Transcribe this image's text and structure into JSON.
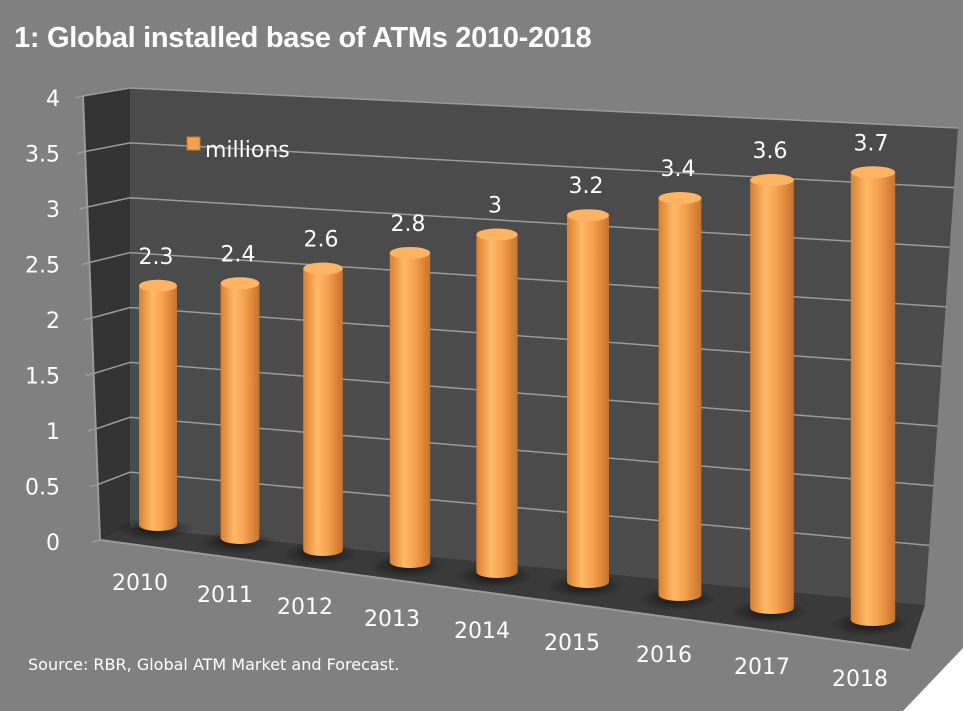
{
  "chart_data": {
    "type": "bar",
    "title": "1: Global installed base of ATMs 2010-2018",
    "categories": [
      "2010",
      "2011",
      "2012",
      "2013",
      "2014",
      "2015",
      "2016",
      "2017",
      "2018"
    ],
    "series": [
      {
        "name": "millions",
        "values": [
          2.3,
          2.4,
          2.6,
          2.8,
          3,
          3.2,
          3.4,
          3.6,
          3.7
        ]
      }
    ],
    "data_labels": [
      "2.3",
      "2.4",
      "2.6",
      "2.8",
      "3",
      "3.2",
      "3.4",
      "3.6",
      "3.7"
    ],
    "y_ticks": [
      "0",
      "0.5",
      "1",
      "1.5",
      "2",
      "2.5",
      "3",
      "3.5",
      "4"
    ],
    "ylim": [
      0,
      4
    ],
    "xlabel": "",
    "ylabel": "",
    "grid": true,
    "legend": "top-left",
    "style": "3d-cylinder",
    "colors": {
      "bar": "#F5A04A",
      "background": "#808080",
      "wall": "#4a4a4a",
      "side_wall": "#333333",
      "floor": "#3a3a3a"
    }
  },
  "source": "Source: RBR, Global ATM Market and Forecast."
}
